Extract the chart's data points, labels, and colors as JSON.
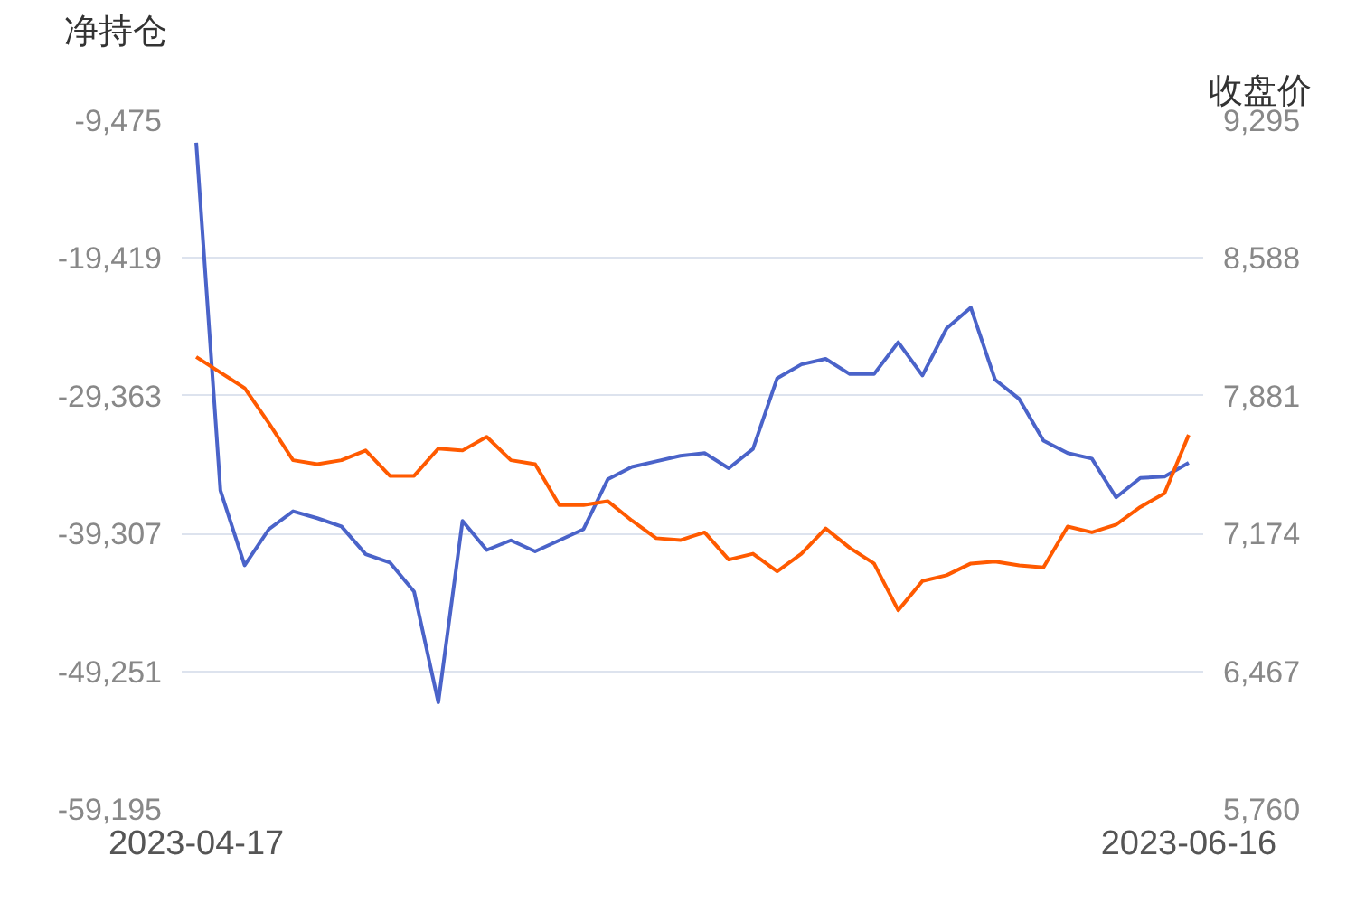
{
  "chart_data": {
    "type": "line",
    "ylabel": "净持仓",
    "y2label": "收盘价",
    "categories": [
      "2023-04-17",
      null,
      null,
      null,
      null,
      null,
      null,
      null,
      null,
      null,
      null,
      null,
      null,
      null,
      null,
      null,
      null,
      null,
      null,
      null,
      null,
      null,
      null,
      null,
      null,
      null,
      null,
      null,
      null,
      null,
      null,
      null,
      null,
      null,
      null,
      null,
      null,
      null,
      null,
      null,
      null,
      "2023-06-16"
    ],
    "series": [
      {
        "color": "#4a63c9",
        "values": [
          -11100,
          -36200,
          -41600,
          -39000,
          -37700,
          -38200,
          -38800,
          -40800,
          -41400,
          -43500,
          -51500,
          -38400,
          -40500,
          -39800,
          -40600,
          -39800,
          -39000,
          -35400,
          -34500,
          -34100,
          -33700,
          -33500,
          -34600,
          -33200,
          -28100,
          -27100,
          -26700,
          -27800,
          -27800,
          -25500,
          -27900,
          -24500,
          -23000,
          -28200,
          -29600,
          -32600,
          -33500,
          -33900,
          -36700,
          -35300,
          -35200,
          -34200
        ]
      },
      {
        "color": "#ff5a00",
        "axis": "y2",
        "values": [
          8080,
          8000,
          7920,
          7740,
          7550,
          7530,
          7550,
          7600,
          7470,
          7470,
          7610,
          7600,
          7670,
          7550,
          7530,
          7320,
          7320,
          7340,
          7240,
          7150,
          7140,
          7180,
          7040,
          7070,
          6980,
          7070,
          7200,
          7100,
          7020,
          6780,
          6930,
          6960,
          7020,
          7030,
          7010,
          7000,
          7210,
          7180,
          7220,
          7310,
          7380,
          7680
        ]
      }
    ],
    "ylim": [
      -59195,
      -9475
    ],
    "yticks": [
      {
        "value": -9475,
        "label": "-9,475"
      },
      {
        "value": -19419,
        "label": "-19,419"
      },
      {
        "value": -29363,
        "label": "-29,363"
      },
      {
        "value": -39307,
        "label": "-39,307"
      },
      {
        "value": -49251,
        "label": "-49,251"
      },
      {
        "value": -59195,
        "label": "-59,195"
      }
    ],
    "y2lim": [
      5760,
      9295
    ],
    "y2ticks": [
      {
        "value": 9295,
        "label": "9,295"
      },
      {
        "value": 8588,
        "label": "8,588"
      },
      {
        "value": 7881,
        "label": "7,881"
      },
      {
        "value": 7174,
        "label": "7,174"
      },
      {
        "value": 6467,
        "label": "6,467"
      },
      {
        "value": 5760,
        "label": "5,760"
      }
    ],
    "grid": "y",
    "marker": "none",
    "line_style": "solid"
  }
}
